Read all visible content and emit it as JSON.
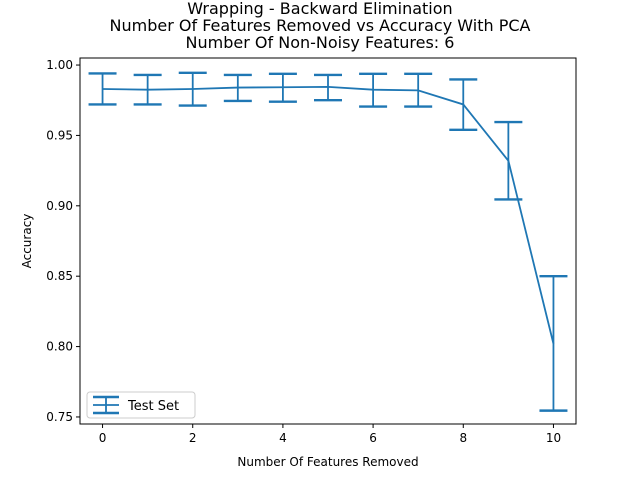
{
  "chart_data": {
    "type": "line",
    "title_lines": [
      "Wrapping - Backward Elimination",
      "Number Of Features Removed vs Accuracy With PCA",
      "Number Of Non-Noisy Features: 6"
    ],
    "xlabel": "Number Of Features Removed",
    "ylabel": "Accuracy",
    "xlim": [
      -0.5,
      10.5
    ],
    "ylim": [
      0.745,
      1.005
    ],
    "xticks": [
      0,
      2,
      4,
      6,
      8,
      10
    ],
    "xtick_labels": [
      "0",
      "2",
      "4",
      "6",
      "8",
      "10"
    ],
    "yticks": [
      0.75,
      0.8,
      0.85,
      0.9,
      0.95,
      1.0
    ],
    "ytick_labels": [
      "0.75",
      "0.80",
      "0.85",
      "0.90",
      "0.95",
      "1.00"
    ],
    "grid": false,
    "legend_position": "lower-left",
    "color": "#1f77b4",
    "series": [
      {
        "name": "Test Set",
        "x": [
          0,
          1,
          2,
          3,
          4,
          5,
          6,
          7,
          8,
          9,
          10
        ],
        "y": [
          0.983,
          0.9825,
          0.983,
          0.984,
          0.9842,
          0.9845,
          0.9825,
          0.982,
          0.972,
          0.932,
          0.802
        ],
        "err_low": [
          0.972,
          0.972,
          0.9712,
          0.9745,
          0.974,
          0.975,
          0.9705,
          0.9705,
          0.954,
          0.9045,
          0.7545
        ],
        "err_high": [
          0.994,
          0.993,
          0.9945,
          0.993,
          0.9938,
          0.993,
          0.9938,
          0.9938,
          0.9898,
          0.9595,
          0.85
        ]
      }
    ]
  }
}
